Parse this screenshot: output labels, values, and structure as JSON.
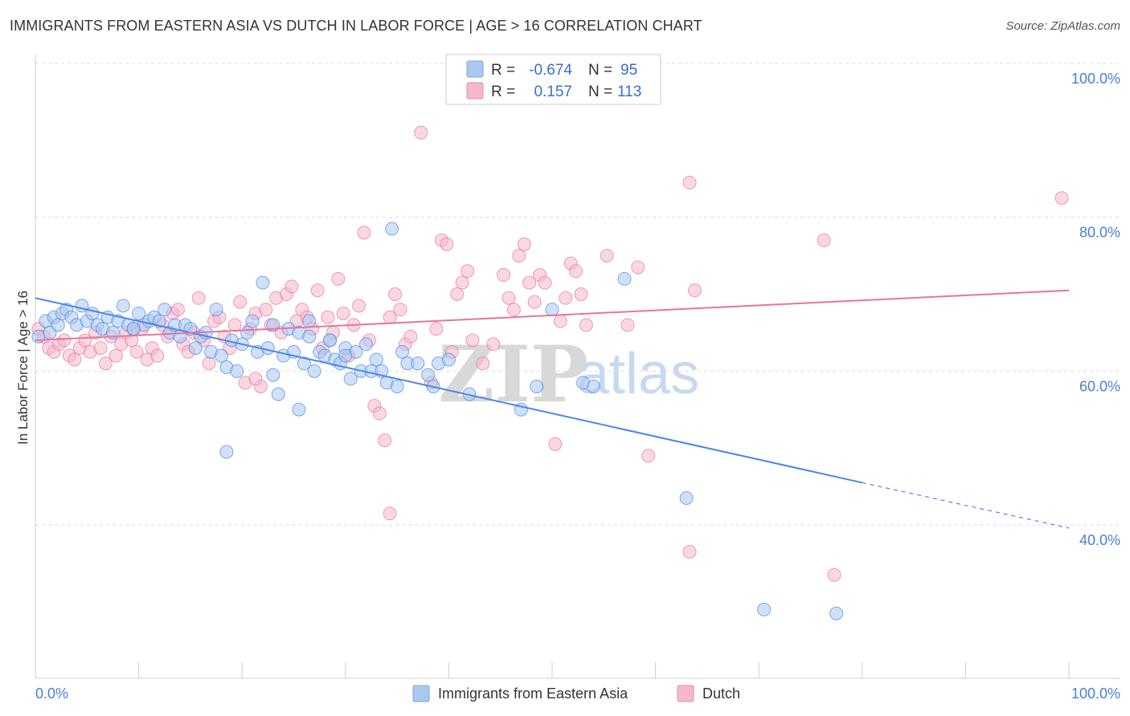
{
  "title": "IMMIGRANTS FROM EASTERN ASIA VS DUTCH IN LABOR FORCE | AGE > 16 CORRELATION CHART",
  "source": "Source: ZipAtlas.com",
  "watermark": {
    "zip": "ZIP",
    "atlas": "atlas"
  },
  "legend": {
    "rows": [
      {
        "r_label": "R =",
        "r_value": "-0.674",
        "n_label": "N =",
        "n_value": "95",
        "color": "#a9c8f0"
      },
      {
        "r_label": "R =",
        "r_value": "0.157",
        "n_label": "N =",
        "n_value": "113",
        "color": "#f5b8ca"
      }
    ]
  },
  "bottom_legend": [
    {
      "label": "Immigrants from Eastern Asia",
      "color": "#a9c8f0"
    },
    {
      "label": "Dutch",
      "color": "#f5b8ca"
    }
  ],
  "chart_data": {
    "type": "scatter",
    "title": "IMMIGRANTS FROM EASTERN ASIA VS DUTCH IN LABOR FORCE | AGE > 16 CORRELATION CHART",
    "xlabel": "",
    "ylabel": "In Labor Force | Age > 16",
    "xlim": [
      0,
      100
    ],
    "ylim": [
      20,
      100
    ],
    "x_tick_labels": [
      "0.0%",
      "100.0%"
    ],
    "y_ticks": [
      40,
      60,
      80,
      100
    ],
    "y_tick_labels": [
      "40.0%",
      "60.0%",
      "80.0%",
      "100.0%"
    ],
    "grid": true,
    "legend_position": "top-center",
    "series": [
      {
        "name": "Immigrants from Eastern Asia",
        "color": "#4a86e8",
        "fill": "#a9c8f0",
        "trend": {
          "x0": 0,
          "y0": 69.5,
          "x1": 80,
          "y1": 45.5,
          "dashed_to": 100,
          "dashed_y": 39.6
        },
        "points": [
          [
            0.3,
            64.5
          ],
          [
            1.0,
            66.5
          ],
          [
            1.4,
            65.0
          ],
          [
            1.8,
            67.0
          ],
          [
            2.2,
            66.0
          ],
          [
            2.6,
            67.5
          ],
          [
            3.0,
            68.0
          ],
          [
            3.5,
            67.0
          ],
          [
            4.0,
            66.0
          ],
          [
            4.5,
            68.5
          ],
          [
            5.0,
            66.5
          ],
          [
            5.5,
            67.5
          ],
          [
            6.0,
            66.0
          ],
          [
            6.5,
            65.5
          ],
          [
            7.0,
            67.0
          ],
          [
            7.5,
            65.0
          ],
          [
            8.0,
            66.5
          ],
          [
            8.5,
            68.5
          ],
          [
            9.0,
            66.0
          ],
          [
            9.5,
            65.5
          ],
          [
            10.0,
            67.5
          ],
          [
            10.5,
            66.0
          ],
          [
            11.0,
            66.5
          ],
          [
            11.5,
            67.0
          ],
          [
            12.0,
            66.5
          ],
          [
            12.5,
            68.0
          ],
          [
            13.0,
            65.0
          ],
          [
            13.5,
            66.0
          ],
          [
            14.0,
            64.5
          ],
          [
            14.5,
            66.0
          ],
          [
            15.0,
            65.5
          ],
          [
            15.5,
            63.0
          ],
          [
            16.0,
            64.5
          ],
          [
            16.5,
            65.0
          ],
          [
            17.0,
            62.5
          ],
          [
            17.5,
            68.0
          ],
          [
            18.0,
            62.0
          ],
          [
            18.5,
            60.5
          ],
          [
            19.0,
            64.0
          ],
          [
            19.5,
            60.0
          ],
          [
            20.0,
            63.5
          ],
          [
            20.5,
            65.0
          ],
          [
            21.0,
            66.5
          ],
          [
            21.5,
            62.5
          ],
          [
            22.0,
            71.5
          ],
          [
            22.5,
            63.0
          ],
          [
            23.0,
            59.5
          ],
          [
            23.5,
            57.0
          ],
          [
            24.0,
            62.0
          ],
          [
            24.5,
            65.5
          ],
          [
            25.0,
            62.5
          ],
          [
            25.5,
            65.0
          ],
          [
            26.0,
            61.0
          ],
          [
            26.5,
            64.5
          ],
          [
            27.0,
            60.0
          ],
          [
            27.5,
            62.5
          ],
          [
            28.0,
            62.0
          ],
          [
            28.5,
            64.0
          ],
          [
            29.0,
            61.5
          ],
          [
            29.5,
            61.0
          ],
          [
            30.0,
            63.0
          ],
          [
            30.5,
            59.0
          ],
          [
            31.0,
            62.5
          ],
          [
            31.5,
            60.0
          ],
          [
            32.0,
            63.5
          ],
          [
            32.5,
            60.0
          ],
          [
            33.0,
            61.5
          ],
          [
            33.5,
            60.0
          ],
          [
            34.0,
            58.5
          ],
          [
            34.5,
            78.5
          ],
          [
            35.0,
            58.0
          ],
          [
            35.5,
            62.5
          ],
          [
            36.0,
            61.0
          ],
          [
            37.0,
            61.0
          ],
          [
            38.0,
            59.5
          ],
          [
            38.5,
            58.0
          ],
          [
            39.0,
            61.0
          ],
          [
            40.0,
            61.5
          ],
          [
            42.0,
            57.0
          ],
          [
            47.0,
            55.0
          ],
          [
            48.5,
            58.0
          ],
          [
            50.0,
            68.0
          ],
          [
            53.0,
            58.5
          ],
          [
            54.0,
            58.0
          ],
          [
            57.0,
            72.0
          ],
          [
            63.0,
            43.5
          ],
          [
            70.5,
            29.0
          ],
          [
            77.5,
            28.5
          ],
          [
            18.5,
            49.5
          ],
          [
            25.5,
            55.0
          ],
          [
            26.5,
            66.5
          ],
          [
            28.5,
            64.0
          ],
          [
            30.0,
            62.0
          ],
          [
            23.0,
            66.0
          ],
          [
            9.5,
            65.5
          ]
        ]
      },
      {
        "name": "Dutch",
        "color": "#e8749c",
        "fill": "#f5b8ca",
        "trend": {
          "x0": 0,
          "y0": 64.0,
          "x1": 100,
          "y1": 70.5
        },
        "points": [
          [
            0.3,
            65.5
          ],
          [
            0.8,
            64.5
          ],
          [
            1.3,
            63.0
          ],
          [
            1.8,
            62.5
          ],
          [
            2.3,
            63.5
          ],
          [
            2.8,
            64.0
          ],
          [
            3.3,
            62.0
          ],
          [
            3.8,
            61.5
          ],
          [
            4.3,
            63.0
          ],
          [
            4.8,
            64.0
          ],
          [
            5.3,
            62.5
          ],
          [
            5.8,
            65.0
          ],
          [
            6.3,
            63.0
          ],
          [
            6.8,
            61.0
          ],
          [
            7.3,
            64.5
          ],
          [
            7.8,
            62.0
          ],
          [
            8.3,
            63.5
          ],
          [
            8.8,
            65.0
          ],
          [
            9.3,
            64.0
          ],
          [
            9.8,
            62.5
          ],
          [
            10.3,
            65.5
          ],
          [
            10.8,
            61.5
          ],
          [
            11.3,
            63.0
          ],
          [
            11.8,
            62.0
          ],
          [
            12.3,
            66.0
          ],
          [
            12.8,
            64.5
          ],
          [
            13.3,
            67.5
          ],
          [
            13.8,
            68.0
          ],
          [
            14.3,
            63.5
          ],
          [
            14.8,
            62.5
          ],
          [
            15.3,
            65.0
          ],
          [
            15.8,
            69.5
          ],
          [
            16.3,
            64.0
          ],
          [
            16.8,
            61.0
          ],
          [
            17.3,
            66.5
          ],
          [
            17.8,
            67.0
          ],
          [
            18.3,
            64.5
          ],
          [
            18.8,
            63.0
          ],
          [
            19.3,
            66.0
          ],
          [
            19.8,
            69.0
          ],
          [
            20.3,
            58.5
          ],
          [
            20.8,
            65.5
          ],
          [
            21.3,
            67.5
          ],
          [
            21.8,
            58.0
          ],
          [
            22.3,
            68.0
          ],
          [
            22.8,
            66.0
          ],
          [
            23.3,
            69.5
          ],
          [
            23.8,
            65.0
          ],
          [
            24.3,
            70.0
          ],
          [
            24.8,
            71.0
          ],
          [
            25.3,
            66.5
          ],
          [
            25.8,
            68.0
          ],
          [
            26.3,
            67.0
          ],
          [
            26.8,
            65.5
          ],
          [
            27.3,
            70.5
          ],
          [
            27.8,
            63.0
          ],
          [
            28.3,
            67.0
          ],
          [
            28.8,
            65.0
          ],
          [
            29.3,
            72.0
          ],
          [
            29.8,
            67.5
          ],
          [
            30.3,
            62.0
          ],
          [
            30.8,
            66.0
          ],
          [
            31.3,
            68.5
          ],
          [
            31.8,
            78.0
          ],
          [
            32.3,
            64.0
          ],
          [
            32.8,
            55.5
          ],
          [
            33.3,
            54.5
          ],
          [
            33.8,
            51.0
          ],
          [
            34.3,
            67.0
          ],
          [
            34.8,
            70.0
          ],
          [
            35.3,
            68.0
          ],
          [
            35.8,
            63.5
          ],
          [
            36.3,
            64.5
          ],
          [
            37.3,
            91.0
          ],
          [
            38.3,
            58.5
          ],
          [
            38.8,
            65.5
          ],
          [
            39.3,
            77.0
          ],
          [
            39.8,
            76.5
          ],
          [
            40.3,
            62.5
          ],
          [
            40.8,
            70.0
          ],
          [
            41.3,
            71.5
          ],
          [
            41.8,
            73.0
          ],
          [
            42.3,
            64.0
          ],
          [
            43.3,
            61.0
          ],
          [
            44.3,
            63.5
          ],
          [
            45.3,
            72.5
          ],
          [
            45.8,
            69.5
          ],
          [
            46.3,
            68.0
          ],
          [
            46.8,
            75.0
          ],
          [
            47.3,
            76.5
          ],
          [
            47.8,
            71.5
          ],
          [
            48.3,
            69.0
          ],
          [
            48.8,
            72.5
          ],
          [
            49.3,
            71.5
          ],
          [
            50.3,
            50.5
          ],
          [
            50.8,
            66.5
          ],
          [
            51.3,
            69.5
          ],
          [
            51.8,
            74.0
          ],
          [
            52.3,
            73.0
          ],
          [
            52.8,
            70.0
          ],
          [
            53.3,
            66.0
          ],
          [
            55.3,
            75.0
          ],
          [
            57.3,
            66.0
          ],
          [
            58.3,
            73.5
          ],
          [
            59.3,
            49.0
          ],
          [
            63.3,
            84.5
          ],
          [
            63.8,
            70.5
          ],
          [
            63.3,
            36.5
          ],
          [
            76.3,
            77.0
          ],
          [
            77.3,
            33.5
          ],
          [
            99.3,
            82.5
          ],
          [
            34.3,
            41.5
          ],
          [
            21.3,
            59.0
          ]
        ]
      }
    ]
  }
}
